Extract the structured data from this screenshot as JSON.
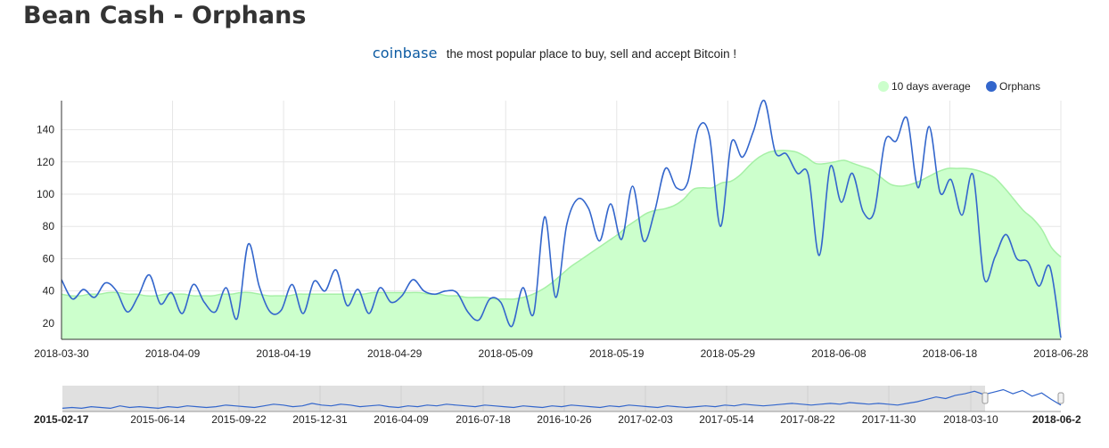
{
  "page": {
    "title": "Bean Cash - Orphans",
    "ad_brand": "coinbase",
    "ad_text": "the most popular place to buy, sell and accept Bitcoin !"
  },
  "colors": {
    "average_fill": "#ccffcc",
    "average_line": "#a6f0a6",
    "orphans_line": "#3366cc",
    "grid": "#e6e6e6",
    "navigator_mask": "#e0e0e0"
  },
  "chart_data": [
    {
      "type": "area",
      "legend_position": "top-right",
      "grid": true,
      "x_ticks": [
        "2018-03-30",
        "2018-04-09",
        "2018-04-19",
        "2018-04-29",
        "2018-05-09",
        "2018-05-19",
        "2018-05-29",
        "2018-06-08",
        "2018-06-18",
        "2018-06-28"
      ],
      "y_ticks": [
        20,
        40,
        60,
        80,
        100,
        120,
        140
      ],
      "ylim": [
        10,
        158
      ],
      "x_start": "2018-03-30",
      "x_end": "2018-06-28",
      "series": [
        {
          "name": "10 days average",
          "kind": "area",
          "color": "#ccffcc",
          "values": [
            38,
            37,
            37,
            38,
            38,
            39,
            39,
            38,
            38,
            37,
            37,
            38,
            38,
            38,
            37,
            37,
            37,
            38,
            38,
            39,
            39,
            38,
            37,
            37,
            37,
            38,
            38,
            38,
            38,
            38,
            38,
            38,
            38,
            39,
            39,
            39,
            39,
            39,
            39,
            38,
            38,
            37,
            37,
            36,
            36,
            36,
            35,
            35,
            35,
            36,
            38,
            41,
            45,
            50,
            55,
            59,
            63,
            67,
            71,
            75,
            80,
            84,
            88,
            90,
            91,
            93,
            97,
            103,
            104,
            104,
            107,
            108,
            112,
            118,
            123,
            126,
            127,
            127,
            126,
            123,
            119,
            119,
            120,
            121,
            119,
            117,
            115,
            110,
            106,
            105,
            106,
            108,
            111,
            114,
            116,
            116,
            116,
            115,
            113,
            110,
            104,
            97,
            90,
            85,
            78,
            67,
            61
          ]
        },
        {
          "name": "Orphans",
          "kind": "line",
          "color": "#3366cc",
          "values": [
            47,
            35,
            41,
            36,
            45,
            40,
            27,
            37,
            50,
            32,
            39,
            26,
            44,
            33,
            27,
            42,
            23,
            69,
            43,
            27,
            28,
            44,
            26,
            46,
            40,
            53,
            31,
            41,
            26,
            42,
            33,
            37,
            47,
            40,
            38,
            40,
            39,
            27,
            22,
            35,
            33,
            18,
            42,
            26,
            86,
            36,
            81,
            97,
            91,
            71,
            94,
            72,
            105,
            71,
            89,
            116,
            104,
            107,
            141,
            136,
            80,
            132,
            123,
            139,
            158,
            126,
            125,
            113,
            112,
            62,
            117,
            95,
            113,
            89,
            89,
            133,
            133,
            147,
            104,
            142,
            101,
            109,
            87,
            112,
            48,
            61,
            75,
            60,
            58,
            43,
            55,
            11
          ]
        }
      ]
    },
    {
      "type": "line",
      "role": "navigator",
      "x_ticks": [
        "2015-02-17",
        "2015-06-14",
        "2015-09-22",
        "2015-12-31",
        "2016-04-09",
        "2016-07-18",
        "2016-10-26",
        "2017-02-03",
        "2017-05-14",
        "2017-08-22",
        "2017-11-30",
        "2018-03-10",
        "2018-06-2"
      ],
      "selected_range": [
        "2018-03-30",
        "2018-06-28"
      ],
      "series": [
        {
          "name": "Orphans",
          "color": "#3366cc",
          "values": [
            4,
            5,
            4,
            6,
            5,
            4,
            7,
            5,
            6,
            5,
            4,
            6,
            5,
            7,
            6,
            5,
            6,
            8,
            7,
            6,
            5,
            7,
            9,
            8,
            6,
            7,
            10,
            8,
            7,
            9,
            8,
            6,
            7,
            8,
            6,
            5,
            7,
            6,
            8,
            7,
            9,
            8,
            7,
            6,
            8,
            7,
            6,
            5,
            7,
            6,
            5,
            7,
            6,
            8,
            7,
            6,
            5,
            7,
            6,
            8,
            7,
            6,
            5,
            7,
            6,
            5,
            6,
            7,
            6,
            8,
            7,
            9,
            8,
            7,
            8,
            9,
            10,
            9,
            8,
            9,
            10,
            9,
            11,
            10,
            9,
            10,
            9,
            8,
            10,
            12,
            15,
            18,
            16,
            20,
            22,
            25,
            21,
            24,
            27,
            22,
            26,
            19,
            23,
            15,
            8
          ]
        }
      ]
    }
  ]
}
